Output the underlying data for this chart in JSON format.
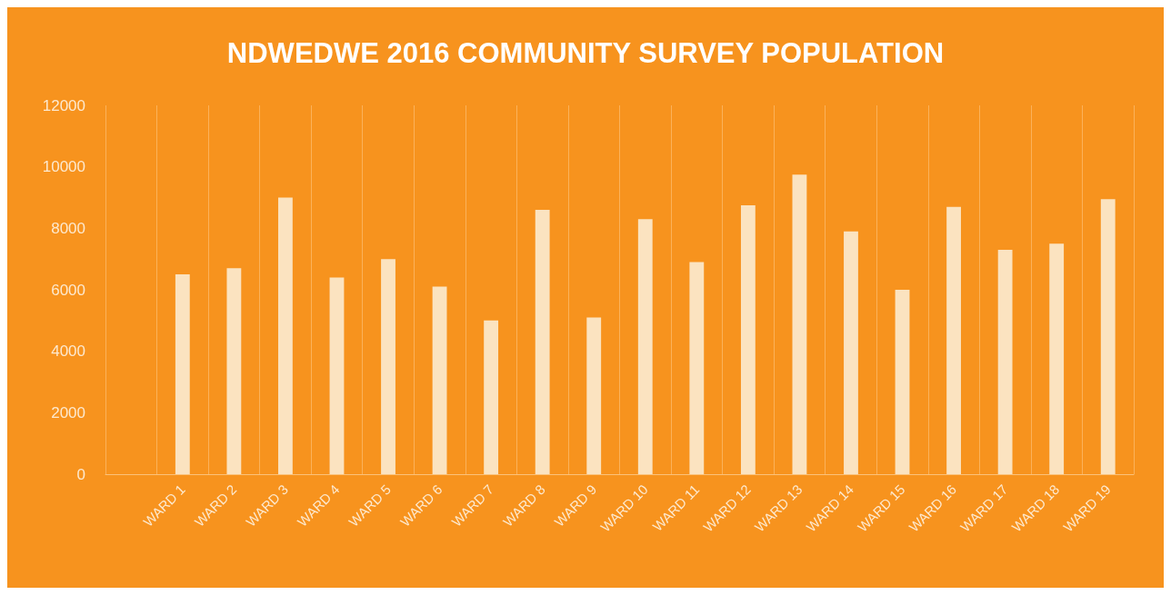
{
  "chart_data": {
    "type": "bar",
    "title": "NDWEDWE 2016 COMMUNITY SURVEY POPULATION",
    "categories": [
      null,
      "WARD 1",
      "WARD 2",
      "WARD 3",
      "WARD 4",
      "WARD 5",
      "WARD 6",
      "WARD 7",
      "WARD 8",
      "WARD 9",
      "WARD 10",
      "WARD 11",
      "WARD 12",
      "WARD 13",
      "WARD 14",
      "WARD 15",
      "WARD 16",
      "WARD 17",
      "WARD 18",
      "WARD 19"
    ],
    "values": [
      null,
      6500,
      6700,
      9000,
      6400,
      7000,
      6100,
      5000,
      8600,
      5100,
      8300,
      6900,
      8750,
      9750,
      7900,
      6000,
      8700,
      7300,
      7500,
      8950
    ],
    "color": "#fbe3c0",
    "ylim": [
      0,
      12000
    ],
    "yticks": [
      0,
      2000,
      4000,
      6000,
      8000,
      10000,
      12000
    ],
    "grid": "x"
  }
}
